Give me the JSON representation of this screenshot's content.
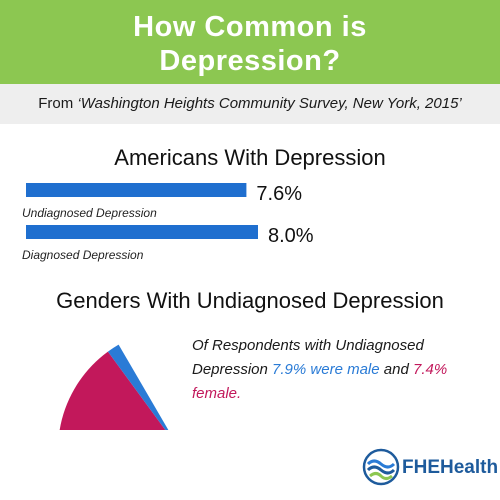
{
  "header": {
    "title_line1": "How Common is",
    "title_line2": "Depression?"
  },
  "source": {
    "prefix": "From ",
    "name": "‘Washington Heights Community Survey, New York, 2015’"
  },
  "colors": {
    "header_green": "#8cc751",
    "bar_blue": "#1f6fcf",
    "male_blue": "#2a7bd6",
    "female_magenta": "#c2185b"
  },
  "chart_data": [
    {
      "type": "bar",
      "orientation": "horizontal",
      "title": "Americans With Depression",
      "categories": [
        "Undiagnosed Depression",
        "Diagnosed Depression"
      ],
      "values": [
        7.6,
        8.0
      ],
      "value_labels": [
        "7.6%",
        "8.0%"
      ],
      "unit": "%"
    },
    {
      "type": "pie",
      "title": "Genders With Undiagnosed Depression",
      "categories": [
        "male",
        "female"
      ],
      "values": [
        7.9,
        7.4
      ],
      "unit": "%",
      "colors": [
        "#2a7bd6",
        "#c2185b"
      ]
    }
  ],
  "pie_note": {
    "part1": "Of Respondents with Undiagnosed Depression ",
    "male": "7.9% were male",
    "part2": " and ",
    "female": "7.4% female."
  },
  "logo": {
    "text": "FHEHealth",
    "icon": "wave-logo-icon"
  }
}
